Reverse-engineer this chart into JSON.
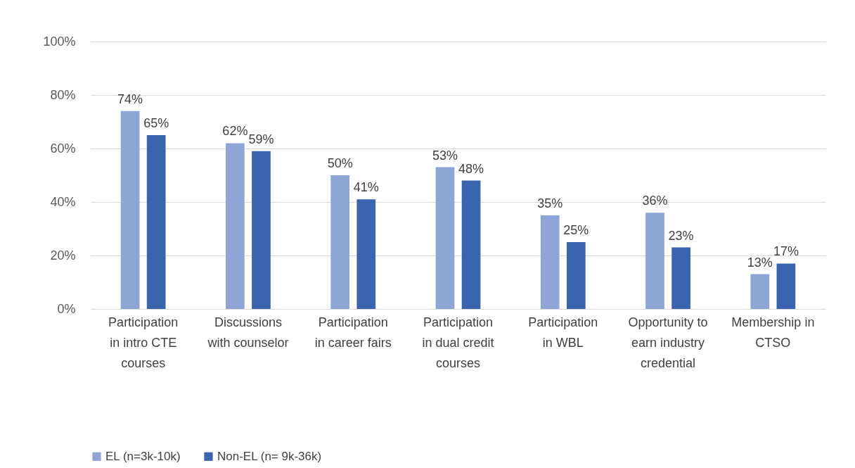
{
  "chart_data": {
    "type": "bar",
    "categories": [
      "Participation in intro CTE courses",
      "Discussions with counselor",
      "Participation in career fairs",
      "Participation in dual credit courses",
      "Participation in WBL",
      "Opportunity to earn industry credential",
      "Membership in CTSO"
    ],
    "series": [
      {
        "name": "EL (n=3k-10k)",
        "color": "#8fa5d6",
        "values": [
          74,
          62,
          50,
          53,
          35,
          36,
          13
        ],
        "value_labels": [
          "74%",
          "62%",
          "50%",
          "53%",
          "35%",
          "36%",
          "13%"
        ]
      },
      {
        "name": "Non-EL (n= 9k-36k)",
        "color": "#3b64ae",
        "values": [
          65,
          59,
          41,
          48,
          25,
          23,
          17
        ],
        "value_labels": [
          "65%",
          "59%",
          "41%",
          "48%",
          "25%",
          "23%",
          "17%"
        ]
      }
    ],
    "ylim": [
      0,
      100
    ],
    "yticks": [
      {
        "value": 0,
        "label": "0%"
      },
      {
        "value": 20,
        "label": "20%"
      },
      {
        "value": 40,
        "label": "40%"
      },
      {
        "value": 60,
        "label": "60%"
      },
      {
        "value": 80,
        "label": "80%"
      },
      {
        "value": 100,
        "label": "100%"
      }
    ],
    "grid": "y",
    "legend": "bottom"
  }
}
